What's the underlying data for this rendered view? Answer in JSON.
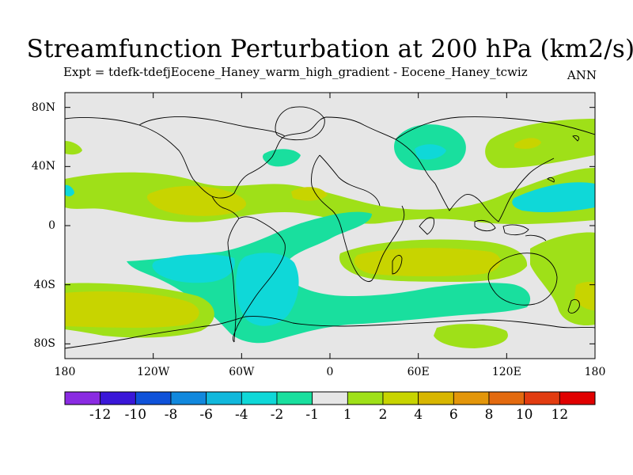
{
  "title": "Streamfunction Perturbation at 200 hPa (km2/s)",
  "subtitle": "Expt = tdefk-tdefjEocene_Haney_warm_high_gradient - Eocene_Haney_tcwiz",
  "season": "ANN",
  "lat_ticks": [
    {
      "value": 80,
      "label": "80N"
    },
    {
      "value": 40,
      "label": "40N"
    },
    {
      "value": 0,
      "label": "0"
    },
    {
      "value": -40,
      "label": "40S"
    },
    {
      "value": -80,
      "label": "80S"
    }
  ],
  "lon_ticks": [
    {
      "value": -180,
      "label": "180"
    },
    {
      "value": -120,
      "label": "120W"
    },
    {
      "value": -60,
      "label": "60W"
    },
    {
      "value": 0,
      "label": "0"
    },
    {
      "value": 60,
      "label": "60E"
    },
    {
      "value": 120,
      "label": "120E"
    },
    {
      "value": 180,
      "label": "180"
    }
  ],
  "colorbar": {
    "colors": [
      "#8a2be2",
      "#3a17d8",
      "#0f52d9",
      "#1188dd",
      "#11b8dc",
      "#0fd8d8",
      "#19df9e",
      "#e6e6e6",
      "#9fe018",
      "#c8d400",
      "#d8b600",
      "#e3960a",
      "#e36a0f",
      "#e23c10",
      "#e00000"
    ],
    "labels": [
      "-12",
      "-10",
      "-8",
      "-6",
      "-4",
      "-2",
      "-1",
      "1",
      "2",
      "4",
      "6",
      "8",
      "10",
      "12"
    ]
  }
}
